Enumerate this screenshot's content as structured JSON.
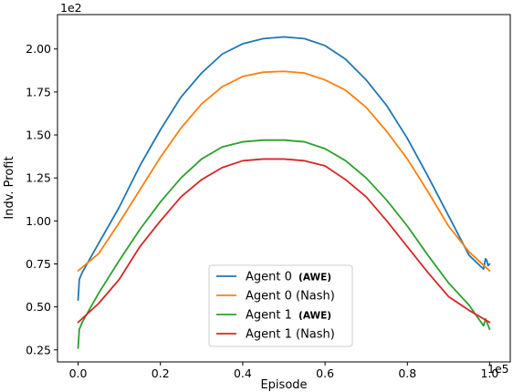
{
  "chart_data": {
    "type": "line",
    "xlabel": "Episode",
    "ylabel": "Indv. Profit",
    "x_multiplier_label": "1e5",
    "y_multiplier_label": "1e2",
    "xlim": [
      -0.05,
      1.05
    ],
    "ylim": [
      0.18,
      2.2
    ],
    "x_ticks": [
      0.0,
      0.2,
      0.4,
      0.6,
      0.8,
      1.0
    ],
    "x_tick_labels": [
      "0.0",
      "0.2",
      "0.4",
      "0.6",
      "0.8",
      "1.0"
    ],
    "y_ticks": [
      0.25,
      0.5,
      0.75,
      1.0,
      1.25,
      1.5,
      1.75,
      2.0
    ],
    "y_tick_labels": [
      "0.25",
      "0.50",
      "0.75",
      "1.00",
      "1.25",
      "1.50",
      "1.75",
      "2.00"
    ],
    "grid": false,
    "legend_position": "bottom-center",
    "series": [
      {
        "name": "Agent 0",
        "tag": "(AWE)",
        "color": "#1f77b4",
        "x": [
          0.0,
          0.003,
          0.01,
          0.05,
          0.1,
          0.15,
          0.2,
          0.25,
          0.3,
          0.35,
          0.4,
          0.45,
          0.5,
          0.55,
          0.6,
          0.65,
          0.7,
          0.75,
          0.8,
          0.85,
          0.9,
          0.95,
          0.985,
          0.99,
          0.993,
          0.996,
          1.0
        ],
        "y": [
          0.54,
          0.66,
          0.7,
          0.87,
          1.08,
          1.32,
          1.53,
          1.72,
          1.86,
          1.97,
          2.03,
          2.06,
          2.07,
          2.06,
          2.02,
          1.94,
          1.82,
          1.67,
          1.48,
          1.26,
          1.03,
          0.8,
          0.72,
          0.78,
          0.77,
          0.74,
          0.75
        ]
      },
      {
        "name": "Agent 0 (Nash)",
        "tag": "",
        "color": "#ff7f0e",
        "x": [
          0.0,
          0.05,
          0.1,
          0.15,
          0.2,
          0.25,
          0.3,
          0.35,
          0.4,
          0.45,
          0.5,
          0.55,
          0.6,
          0.65,
          0.7,
          0.75,
          0.8,
          0.85,
          0.9,
          0.95,
          1.0
        ],
        "y": [
          0.71,
          0.81,
          0.99,
          1.18,
          1.37,
          1.54,
          1.68,
          1.78,
          1.84,
          1.865,
          1.87,
          1.86,
          1.82,
          1.76,
          1.66,
          1.52,
          1.36,
          1.17,
          0.97,
          0.82,
          0.71
        ]
      },
      {
        "name": "Agent 1",
        "tag": "(AWE)",
        "color": "#2ca02c",
        "x": [
          0.0,
          0.003,
          0.01,
          0.05,
          0.1,
          0.15,
          0.2,
          0.25,
          0.3,
          0.35,
          0.4,
          0.45,
          0.5,
          0.55,
          0.6,
          0.65,
          0.7,
          0.75,
          0.8,
          0.85,
          0.9,
          0.95,
          0.985,
          0.99,
          0.995,
          1.0
        ],
        "y": [
          0.26,
          0.37,
          0.41,
          0.58,
          0.77,
          0.95,
          1.11,
          1.25,
          1.36,
          1.43,
          1.46,
          1.47,
          1.47,
          1.46,
          1.42,
          1.35,
          1.25,
          1.12,
          0.97,
          0.8,
          0.64,
          0.51,
          0.39,
          0.43,
          0.4,
          0.37
        ]
      },
      {
        "name": "Agent 1 (Nash)",
        "tag": "",
        "color": "#d62728",
        "x": [
          0.0,
          0.05,
          0.1,
          0.15,
          0.2,
          0.25,
          0.3,
          0.35,
          0.4,
          0.45,
          0.5,
          0.55,
          0.6,
          0.65,
          0.7,
          0.75,
          0.8,
          0.85,
          0.9,
          0.95,
          1.0
        ],
        "y": [
          0.41,
          0.52,
          0.66,
          0.85,
          1.0,
          1.14,
          1.24,
          1.31,
          1.35,
          1.36,
          1.36,
          1.35,
          1.32,
          1.24,
          1.14,
          1.0,
          0.85,
          0.7,
          0.56,
          0.48,
          0.41
        ]
      }
    ]
  }
}
